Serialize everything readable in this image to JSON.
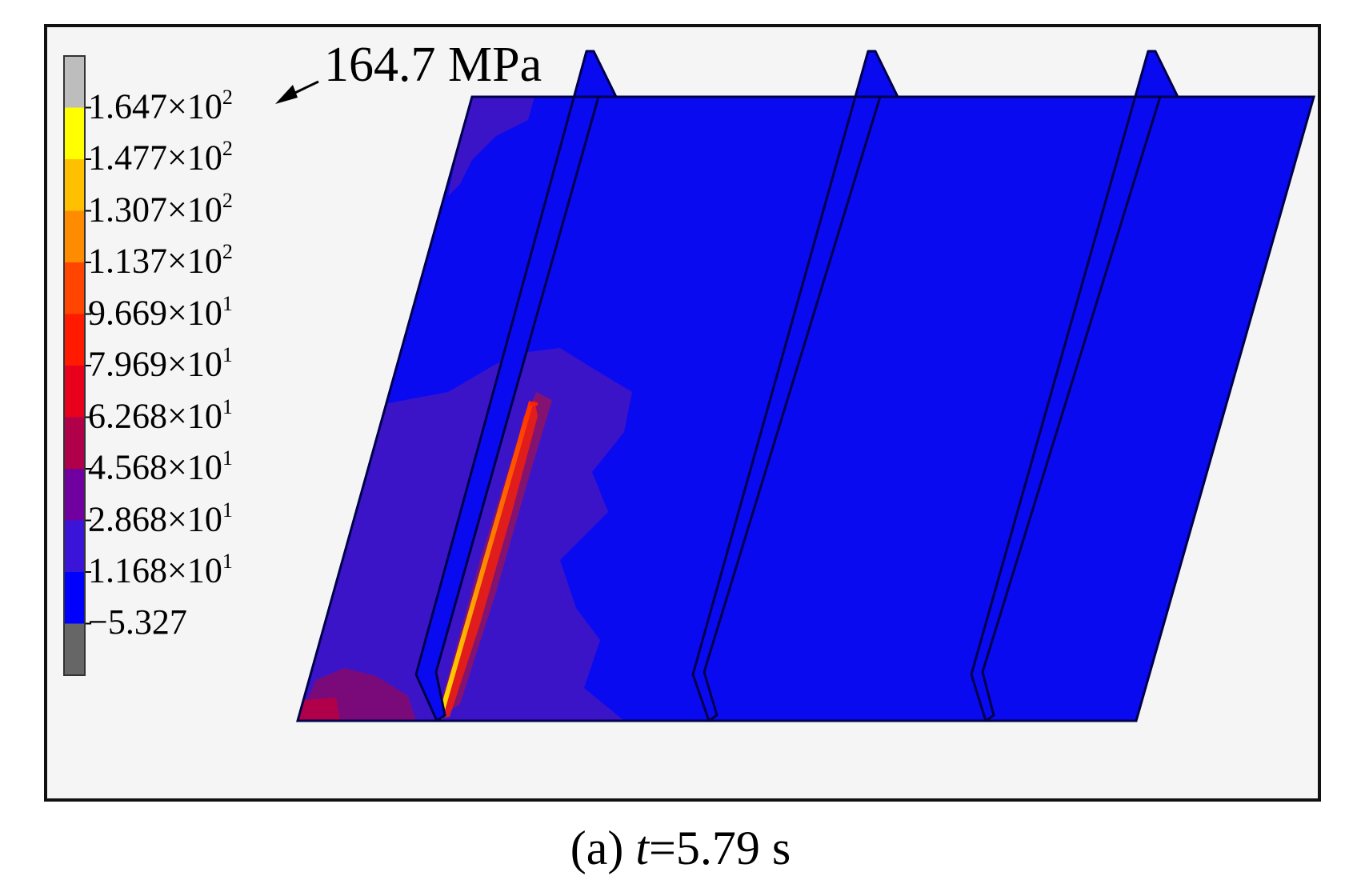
{
  "annotation": {
    "peak_value": "164.7 MPa"
  },
  "legend": {
    "swatch_colors": [
      "#bdbdbd",
      "#ffff00",
      "#ffc000",
      "#ff8c00",
      "#ff4500",
      "#ff1a00",
      "#e8001c",
      "#b0004a",
      "#7000a0",
      "#3a14d8",
      "#0000ff",
      "#666666"
    ],
    "levels": [
      {
        "mantissa": "1.647",
        "times": "×10",
        "exp": "2"
      },
      {
        "mantissa": "1.477",
        "times": "×10",
        "exp": "2"
      },
      {
        "mantissa": "1.307",
        "times": "×10",
        "exp": "2"
      },
      {
        "mantissa": "1.137",
        "times": "×10",
        "exp": "2"
      },
      {
        "mantissa": "9.669",
        "times": "×10",
        "exp": "1"
      },
      {
        "mantissa": "7.969",
        "times": "×10",
        "exp": "1"
      },
      {
        "mantissa": "6.268",
        "times": "×10",
        "exp": "1"
      },
      {
        "mantissa": "4.568",
        "times": "×10",
        "exp": "1"
      },
      {
        "mantissa": "2.868",
        "times": "×10",
        "exp": "1"
      },
      {
        "mantissa": "1.168",
        "times": "×10",
        "exp": "1"
      },
      {
        "mantissa": "−5.327",
        "times": "",
        "exp": ""
      }
    ]
  },
  "colors": {
    "plate_blue": "#0a0af0",
    "stress_purple": "#3c14c8",
    "stress_red": "#ff2000",
    "stress_yellow": "#ffe000"
  },
  "caption": {
    "prefix": "(a) ",
    "var": "t",
    "rest": "=5.79 s"
  }
}
